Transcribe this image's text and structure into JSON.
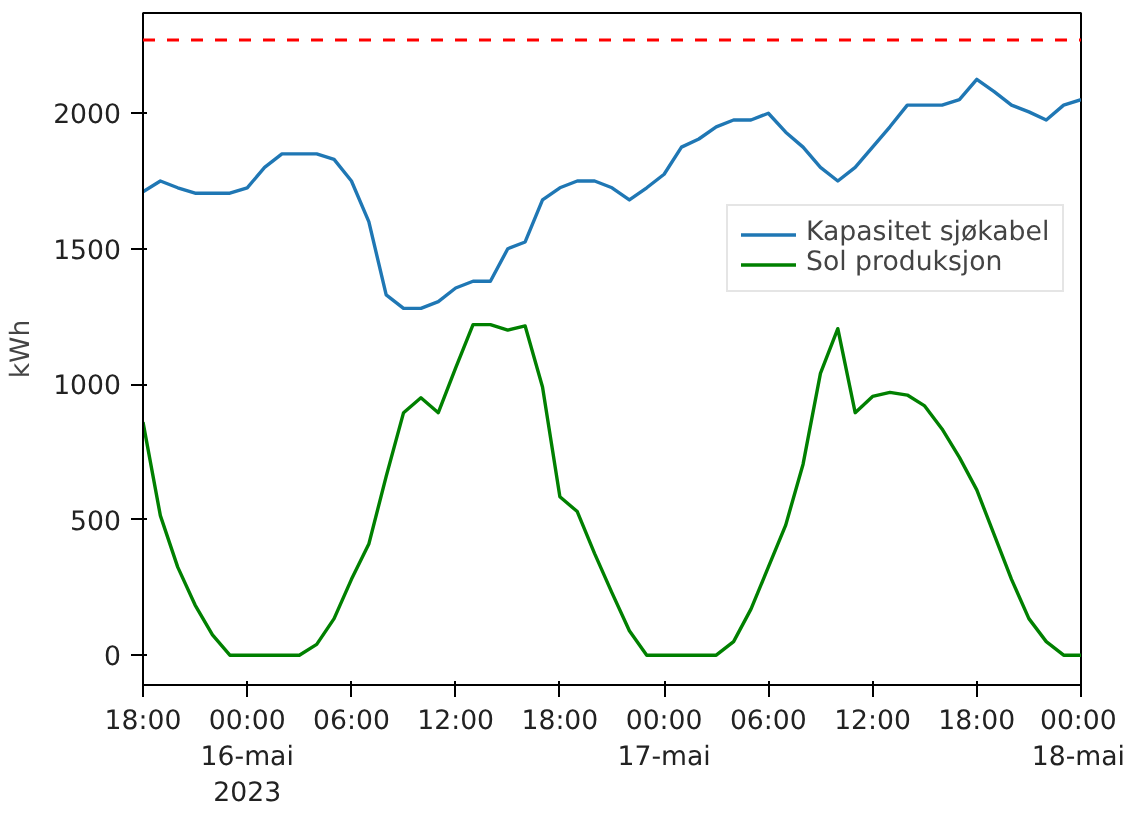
{
  "chart_data": {
    "type": "line",
    "ylabel": "kWh",
    "x": [
      "2023-05-15T18:00",
      "2023-05-15T19:00",
      "2023-05-15T20:00",
      "2023-05-15T21:00",
      "2023-05-15T22:00",
      "2023-05-15T23:00",
      "2023-05-16T00:00",
      "2023-05-16T01:00",
      "2023-05-16T02:00",
      "2023-05-16T03:00",
      "2023-05-16T04:00",
      "2023-05-16T05:00",
      "2023-05-16T06:00",
      "2023-05-16T07:00",
      "2023-05-16T08:00",
      "2023-05-16T09:00",
      "2023-05-16T10:00",
      "2023-05-16T11:00",
      "2023-05-16T12:00",
      "2023-05-16T13:00",
      "2023-05-16T14:00",
      "2023-05-16T15:00",
      "2023-05-16T16:00",
      "2023-05-16T17:00",
      "2023-05-16T18:00",
      "2023-05-16T19:00",
      "2023-05-16T20:00",
      "2023-05-16T21:00",
      "2023-05-16T22:00",
      "2023-05-16T23:00",
      "2023-05-17T00:00",
      "2023-05-17T01:00",
      "2023-05-17T02:00",
      "2023-05-17T03:00",
      "2023-05-17T04:00",
      "2023-05-17T05:00",
      "2023-05-17T06:00",
      "2023-05-17T07:00",
      "2023-05-17T08:00",
      "2023-05-17T09:00",
      "2023-05-17T10:00",
      "2023-05-17T11:00",
      "2023-05-17T12:00",
      "2023-05-17T13:00",
      "2023-05-17T14:00",
      "2023-05-17T15:00",
      "2023-05-17T16:00",
      "2023-05-17T17:00",
      "2023-05-17T18:00",
      "2023-05-17T19:00",
      "2023-05-17T20:00",
      "2023-05-17T21:00",
      "2023-05-17T22:00",
      "2023-05-17T23:00",
      "2023-05-18T00:00"
    ],
    "series": [
      {
        "name": "Kapasitet sjøkabel",
        "color": "#1f77b4",
        "values": [
          1710,
          1750,
          1725,
          1705,
          1705,
          1705,
          1725,
          1800,
          1850,
          1850,
          1850,
          1830,
          1750,
          1600,
          1330,
          1280,
          1280,
          1305,
          1355,
          1380,
          1380,
          1500,
          1525,
          1680,
          1725,
          1750,
          1750,
          1725,
          1680,
          1725,
          1775,
          1875,
          1905,
          1950,
          1975,
          1975,
          2000,
          1930,
          1875,
          1800,
          1750,
          1800,
          1875,
          1950,
          2030,
          2030,
          2030,
          2050,
          2125,
          2080,
          2030,
          2005,
          1975,
          2030,
          2050
        ]
      },
      {
        "name": "Sol produksjon",
        "color": "#008000",
        "values": [
          860,
          515,
          325,
          185,
          75,
          0,
          0,
          0,
          0,
          0,
          40,
          135,
          280,
          410,
          660,
          895,
          950,
          895,
          1060,
          1220,
          1220,
          1200,
          1215,
          990,
          585,
          530,
          375,
          230,
          90,
          0,
          0,
          0,
          0,
          0,
          50,
          170,
          325,
          480,
          705,
          1040,
          1205,
          895,
          955,
          970,
          960,
          920,
          835,
          730,
          610,
          445,
          280,
          135,
          50,
          0,
          0
        ]
      }
    ],
    "xlim": [
      "2023-05-15T18:00",
      "2023-05-18T00:00"
    ],
    "xticks": [
      {
        "value": "2023-05-15T18:00",
        "label": "18:00"
      },
      {
        "value": "2023-05-16T00:00",
        "label": "00:00\n16-mai\n2023"
      },
      {
        "value": "2023-05-16T06:00",
        "label": "06:00"
      },
      {
        "value": "2023-05-16T12:00",
        "label": "12:00"
      },
      {
        "value": "2023-05-16T18:00",
        "label": "18:00"
      },
      {
        "value": "2023-05-17T00:00",
        "label": "00:00\n17-mai"
      },
      {
        "value": "2023-05-17T06:00",
        "label": "06:00"
      },
      {
        "value": "2023-05-17T12:00",
        "label": "12:00"
      },
      {
        "value": "2023-05-17T18:00",
        "label": "18:00"
      },
      {
        "value": "2023-05-18T00:00",
        "label": "00:00\n18-mai"
      }
    ],
    "ylim": [
      -110,
      2370
    ],
    "yticks": [
      0,
      500,
      1000,
      1500,
      2000
    ],
    "ref_lines": [
      {
        "axis": "y",
        "value": 2270,
        "color": "#ff0000",
        "line_style": "dashed"
      }
    ],
    "grid": false,
    "legend": "right"
  }
}
